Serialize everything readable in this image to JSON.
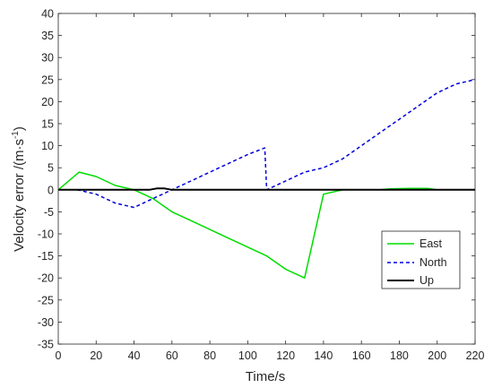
{
  "chart_data": {
    "type": "line",
    "xlabel": "Time/s",
    "ylabel_main": "Velocity error /(m·s",
    "ylabel_sup": "-1",
    "ylabel_close": ")",
    "xlim": [
      0,
      220
    ],
    "ylim": [
      -35,
      40
    ],
    "xticks": [
      0,
      20,
      40,
      60,
      80,
      100,
      120,
      140,
      160,
      180,
      200,
      220
    ],
    "yticks": [
      -35,
      -30,
      -25,
      -20,
      -15,
      -10,
      -5,
      0,
      5,
      10,
      15,
      20,
      25,
      30,
      35,
      40
    ],
    "grid": false,
    "legend_position": "bottom-right",
    "series": [
      {
        "name": "East",
        "color": "#00dd00",
        "style": "solid",
        "x": [
          0,
          11,
          20,
          30,
          40,
          50,
          60,
          70,
          80,
          90,
          100,
          110,
          120,
          130,
          140,
          150,
          160,
          170,
          175,
          185,
          195,
          200,
          210,
          220
        ],
        "y": [
          0,
          4,
          3,
          1,
          0,
          -2,
          -5,
          -7,
          -9,
          -11,
          -13,
          -15,
          -18,
          -20,
          -1,
          0,
          0,
          0,
          0.2,
          0.3,
          0.3,
          0,
          0,
          0
        ]
      },
      {
        "name": "North",
        "color": "#0000dd",
        "style": "dashed",
        "x": [
          0,
          10,
          20,
          30,
          40,
          50,
          60,
          70,
          80,
          90,
          100,
          109,
          110,
          120,
          130,
          140,
          150,
          160,
          170,
          180,
          190,
          200,
          210,
          220
        ],
        "y": [
          0,
          0,
          -1,
          -3,
          -4,
          -2,
          0,
          2,
          4,
          6,
          8,
          9.5,
          0,
          2,
          4,
          5,
          7,
          10,
          13,
          16,
          19,
          22,
          24,
          25
        ]
      },
      {
        "name": "Up",
        "color": "#000000",
        "style": "solid",
        "x": [
          0,
          48,
          52,
          56,
          60,
          220
        ],
        "y": [
          0,
          0,
          0.3,
          0.3,
          0,
          0
        ]
      }
    ]
  }
}
